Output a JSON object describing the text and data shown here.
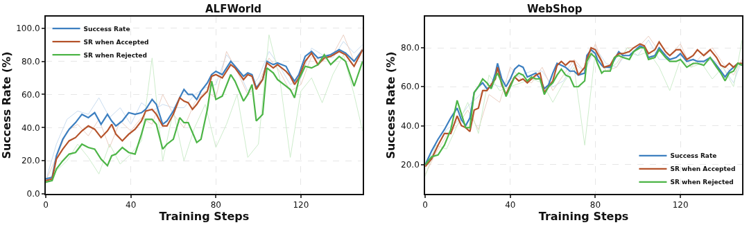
{
  "chart_data": [
    {
      "type": "line",
      "title": "ALFWorld",
      "xlabel": "Training Steps",
      "ylabel": "Success Rate (%)",
      "xlim": [
        0,
        149
      ],
      "ylim": [
        0,
        107
      ],
      "xticks": [
        0,
        40,
        80,
        120
      ],
      "yticks": [
        {
          "value": 0,
          "label": "0.0"
        },
        {
          "value": 20,
          "label": "20.0"
        },
        {
          "value": 40,
          "label": "40.0"
        },
        {
          "value": 60,
          "label": "60.0"
        },
        {
          "value": 80,
          "label": "80.0"
        },
        {
          "value": 100,
          "label": "100.0"
        }
      ],
      "grid": true,
      "legend": "top left",
      "line_style": "solid",
      "series": [
        {
          "color": "#c9dcef",
          "x": [
            0,
            5,
            10,
            15,
            20,
            25,
            30,
            35,
            40,
            45,
            50,
            55,
            60,
            65,
            70,
            75,
            80,
            85,
            90,
            95,
            100,
            105,
            110,
            115,
            120,
            125,
            130,
            135,
            140,
            145,
            149
          ],
          "values": [
            8,
            30,
            45,
            50,
            48,
            58,
            46,
            52,
            42,
            55,
            50,
            54,
            52,
            52,
            60,
            64,
            66,
            84,
            76,
            62,
            70,
            86,
            77,
            66,
            70,
            88,
            84,
            82,
            92,
            85,
            90
          ]
        },
        {
          "color": "#ebcfc3",
          "x": [
            0,
            5,
            10,
            15,
            20,
            25,
            30,
            35,
            40,
            45,
            50,
            55,
            60,
            65,
            70,
            75,
            80,
            85,
            90,
            95,
            100,
            105,
            110,
            115,
            120,
            125,
            130,
            135,
            140,
            145,
            149
          ],
          "values": [
            8,
            22,
            38,
            42,
            35,
            45,
            28,
            44,
            38,
            46,
            42,
            60,
            48,
            40,
            55,
            62,
            58,
            86,
            74,
            60,
            66,
            82,
            74,
            62,
            66,
            83,
            80,
            84,
            96,
            80,
            88
          ]
        },
        {
          "color": "#cdeccb",
          "x": [
            0,
            5,
            10,
            15,
            20,
            25,
            30,
            35,
            40,
            45,
            50,
            55,
            60,
            65,
            70,
            75,
            80,
            85,
            90,
            95,
            100,
            105,
            110,
            115,
            120,
            125,
            130,
            135,
            140,
            145,
            149
          ],
          "values": [
            6,
            14,
            20,
            30,
            22,
            12,
            30,
            18,
            24,
            32,
            82,
            20,
            50,
            20,
            40,
            54,
            28,
            42,
            60,
            22,
            30,
            96,
            70,
            22,
            62,
            70,
            55,
            72,
            84,
            60,
            38
          ]
        },
        {
          "name": "Success Rate",
          "color": "#3c7fc0",
          "x": [
            0,
            3,
            5,
            8,
            11,
            14,
            17,
            20,
            23,
            26,
            29,
            31,
            33,
            36,
            39,
            42,
            45,
            47,
            50,
            52,
            55,
            57,
            60,
            63,
            65,
            67,
            69,
            71,
            73,
            76,
            78,
            80,
            83,
            87,
            89,
            93,
            95,
            97,
            99,
            102,
            104,
            107,
            109,
            113,
            115,
            117,
            119,
            122,
            125,
            128,
            131,
            134,
            138,
            141,
            145,
            149
          ],
          "values": [
            9,
            10,
            23,
            33,
            39,
            43,
            48,
            46,
            49,
            42,
            48,
            44,
            41,
            44,
            49,
            48,
            49,
            51,
            57,
            54,
            42,
            44,
            50,
            58,
            63,
            60,
            60,
            57,
            62,
            67,
            72,
            74,
            72,
            80,
            77,
            71,
            73,
            72,
            64,
            69,
            80,
            78,
            79,
            77,
            72,
            68,
            72,
            83,
            86,
            82,
            83,
            84,
            87,
            85,
            80,
            87
          ]
        },
        {
          "name": "SR when Accepted",
          "color": "#b5532b",
          "x": [
            0,
            3,
            5,
            8,
            11,
            14,
            17,
            20,
            23,
            26,
            29,
            31,
            33,
            36,
            39,
            42,
            45,
            47,
            50,
            52,
            55,
            57,
            60,
            63,
            65,
            67,
            69,
            71,
            73,
            76,
            78,
            80,
            83,
            87,
            89,
            93,
            95,
            97,
            99,
            102,
            104,
            107,
            109,
            113,
            115,
            117,
            119,
            122,
            125,
            128,
            131,
            134,
            138,
            141,
            145,
            149
          ],
          "values": [
            8,
            9,
            21,
            27,
            32,
            34,
            38,
            41,
            39,
            34,
            38,
            42,
            36,
            32,
            36,
            39,
            44,
            50,
            51,
            48,
            41,
            41,
            48,
            58,
            56,
            55,
            51,
            54,
            58,
            62,
            71,
            72,
            70,
            78,
            76,
            69,
            72,
            71,
            63,
            69,
            79,
            76,
            78,
            74,
            71,
            66,
            70,
            80,
            85,
            78,
            82,
            83,
            86,
            84,
            77,
            87
          ]
        },
        {
          "name": "SR when Rejected",
          "color": "#4db547",
          "x": [
            0,
            3,
            5,
            8,
            11,
            14,
            17,
            20,
            23,
            26,
            29,
            31,
            33,
            36,
            39,
            42,
            45,
            47,
            50,
            52,
            55,
            57,
            60,
            63,
            65,
            67,
            69,
            71,
            73,
            76,
            78,
            80,
            83,
            87,
            89,
            93,
            95,
            97,
            99,
            102,
            104,
            107,
            109,
            113,
            115,
            117,
            119,
            122,
            125,
            128,
            131,
            134,
            138,
            141,
            145,
            149
          ],
          "values": [
            7,
            8,
            15,
            20,
            24,
            25,
            30,
            28,
            27,
            21,
            17,
            23,
            24,
            28,
            25,
            24,
            36,
            45,
            45,
            42,
            27,
            30,
            33,
            46,
            43,
            43,
            37,
            31,
            33,
            51,
            68,
            57,
            59,
            72,
            68,
            56,
            60,
            66,
            44,
            48,
            76,
            73,
            69,
            65,
            63,
            58,
            69,
            77,
            76,
            78,
            84,
            78,
            83,
            80,
            65,
            80
          ]
        }
      ]
    },
    {
      "type": "line",
      "title": "WebShop",
      "xlabel": "Training Steps",
      "ylabel": "Success Rate (%)",
      "xlim": [
        0,
        149
      ],
      "ylim": [
        5,
        96
      ],
      "xticks": [
        0,
        40,
        80,
        120
      ],
      "yticks": [
        {
          "value": 20,
          "label": "20.0"
        },
        {
          "value": 40,
          "label": "40.0"
        },
        {
          "value": 60,
          "label": "60.0"
        },
        {
          "value": 80,
          "label": "80.0"
        }
      ],
      "grid": true,
      "legend": "bottom right",
      "line_style": "solid",
      "series": [
        {
          "color": "#c9dcef",
          "x": [
            0,
            5,
            10,
            15,
            20,
            25,
            30,
            35,
            40,
            45,
            50,
            55,
            60,
            65,
            70,
            75,
            80,
            85,
            90,
            95,
            100,
            105,
            110,
            115,
            120,
            125,
            130,
            135,
            140,
            145,
            149
          ],
          "values": [
            20,
            28,
            38,
            42,
            50,
            55,
            62,
            60,
            64,
            66,
            68,
            68,
            60,
            63,
            72,
            68,
            80,
            72,
            70,
            78,
            76,
            84,
            74,
            74,
            76,
            74,
            72,
            74,
            70,
            62,
            74
          ]
        },
        {
          "color": "#ebcfc3",
          "x": [
            0,
            5,
            10,
            15,
            20,
            25,
            30,
            35,
            40,
            45,
            50,
            55,
            60,
            65,
            70,
            75,
            80,
            85,
            90,
            95,
            100,
            105,
            110,
            115,
            120,
            125,
            130,
            135,
            140,
            145,
            149
          ],
          "values": [
            15,
            26,
            35,
            40,
            48,
            38,
            56,
            52,
            70,
            64,
            62,
            70,
            58,
            66,
            74,
            68,
            82,
            68,
            70,
            80,
            80,
            86,
            78,
            76,
            82,
            70,
            76,
            80,
            72,
            66,
            74
          ]
        },
        {
          "color": "#cdeccb",
          "x": [
            0,
            5,
            10,
            15,
            20,
            25,
            30,
            35,
            40,
            45,
            50,
            55,
            60,
            65,
            70,
            75,
            80,
            85,
            90,
            95,
            100,
            105,
            110,
            115,
            120,
            125,
            130,
            135,
            140,
            145,
            149
          ],
          "values": [
            14,
            30,
            28,
            40,
            52,
            36,
            66,
            58,
            60,
            62,
            64,
            62,
            52,
            62,
            70,
            30,
            78,
            68,
            72,
            80,
            76,
            78,
            70,
            58,
            74,
            70,
            72,
            64,
            70,
            60,
            84
          ]
        },
        {
          "name": "Success Rate",
          "color": "#3c7fc0",
          "x": [
            0,
            3,
            6,
            9,
            12,
            15,
            17,
            19,
            21,
            23,
            25,
            27,
            29,
            31,
            33,
            34,
            36,
            38,
            40,
            42,
            44,
            46,
            48,
            50,
            52,
            54,
            56,
            58,
            60,
            62,
            64,
            66,
            68,
            70,
            72,
            75,
            76,
            78,
            80,
            81,
            83,
            84,
            87,
            89,
            91,
            93,
            96,
            98,
            101,
            103,
            105,
            108,
            110,
            113,
            115,
            118,
            120,
            123,
            126,
            128,
            131,
            134,
            137,
            139,
            141,
            143,
            145,
            147,
            149
          ],
          "values": [
            20,
            27,
            33,
            38,
            44,
            49,
            43,
            40,
            44,
            57,
            60,
            62,
            59,
            60,
            67,
            72,
            64,
            60,
            64,
            69,
            71,
            70,
            65,
            66,
            67,
            64,
            59,
            61,
            67,
            72,
            71,
            70,
            68,
            68,
            66,
            67,
            76,
            79,
            77,
            74,
            71,
            70,
            70,
            74,
            78,
            76,
            76,
            78,
            81,
            80,
            75,
            76,
            80,
            76,
            74,
            75,
            77,
            73,
            74,
            73,
            73,
            75,
            71,
            68,
            65,
            68,
            70,
            72,
            71
          ]
        },
        {
          "name": "SR when Accepted",
          "color": "#b5532b",
          "x": [
            0,
            3,
            6,
            9,
            12,
            15,
            17,
            19,
            21,
            23,
            25,
            27,
            29,
            31,
            33,
            34,
            36,
            38,
            40,
            42,
            44,
            46,
            48,
            50,
            52,
            54,
            56,
            58,
            60,
            62,
            64,
            66,
            68,
            70,
            72,
            75,
            76,
            78,
            80,
            81,
            83,
            84,
            87,
            89,
            91,
            93,
            96,
            98,
            101,
            103,
            105,
            108,
            110,
            113,
            115,
            118,
            120,
            123,
            126,
            128,
            131,
            134,
            137,
            139,
            141,
            143,
            145,
            147,
            149
          ],
          "values": [
            19,
            23,
            30,
            36,
            36,
            45,
            40,
            39,
            37,
            48,
            49,
            58,
            58,
            61,
            64,
            70,
            61,
            56,
            61,
            65,
            63,
            64,
            62,
            64,
            66,
            67,
            57,
            60,
            63,
            71,
            73,
            71,
            73,
            73,
            66,
            70,
            74,
            80,
            79,
            77,
            73,
            70,
            71,
            75,
            77,
            77,
            78,
            80,
            82,
            81,
            77,
            79,
            83,
            78,
            76,
            79,
            79,
            74,
            76,
            79,
            76,
            79,
            75,
            71,
            70,
            72,
            70,
            72,
            72
          ]
        },
        {
          "name": "SR when Rejected",
          "color": "#4db547",
          "x": [
            0,
            3,
            6,
            9,
            12,
            15,
            17,
            19,
            21,
            23,
            25,
            27,
            29,
            31,
            33,
            34,
            36,
            38,
            40,
            42,
            44,
            46,
            48,
            50,
            52,
            54,
            56,
            58,
            60,
            62,
            64,
            66,
            68,
            70,
            72,
            75,
            76,
            78,
            80,
            81,
            83,
            84,
            87,
            89,
            91,
            93,
            96,
            98,
            101,
            103,
            105,
            108,
            110,
            113,
            115,
            118,
            120,
            123,
            126,
            128,
            131,
            134,
            137,
            139,
            141,
            143,
            145,
            147,
            149
          ],
          "values": [
            20,
            24,
            25,
            30,
            38,
            53,
            46,
            39,
            39,
            57,
            60,
            64,
            62,
            59,
            65,
            67,
            62,
            55,
            60,
            65,
            67,
            66,
            63,
            65,
            64,
            64,
            56,
            60,
            62,
            66,
            69,
            66,
            65,
            60,
            60,
            63,
            73,
            77,
            75,
            72,
            67,
            68,
            68,
            75,
            76,
            75,
            74,
            78,
            80,
            80,
            74,
            75,
            79,
            75,
            73,
            73,
            74,
            70,
            72,
            72,
            71,
            75,
            70,
            67,
            63,
            67,
            68,
            72,
            71
          ]
        }
      ]
    }
  ]
}
